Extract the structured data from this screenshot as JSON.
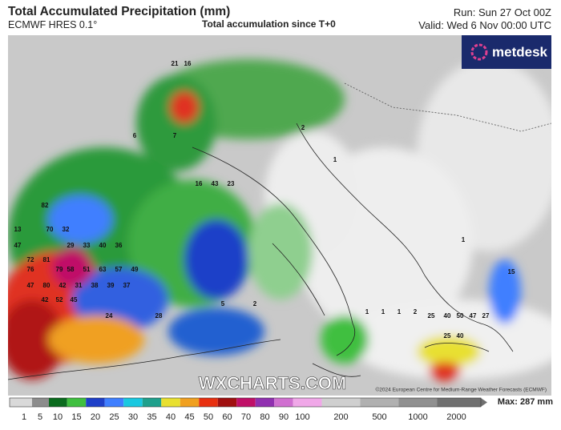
{
  "header": {
    "title": "Total Accumulated Precipitation (mm)",
    "model": "ECMWF HRES 0.1°",
    "subtitle": "Total accumulation since T+0",
    "run": "Run: Sun 27 Oct 00Z",
    "valid": "Valid: Wed 6 Nov 00:00 UTC"
  },
  "logo": "metdesk",
  "watermark": "WXCHARTS.COM",
  "copyright": "©2024 European Centre for Medium-Range Weather Forecasts (ECMWF)",
  "map_labels": [
    "13",
    "70",
    "32",
    "82",
    "47",
    "76",
    "29",
    "33",
    "40",
    "36",
    "72",
    "81",
    "79",
    "58",
    "51",
    "63",
    "57",
    "49",
    "47",
    "80",
    "42",
    "31",
    "38",
    "39",
    "37",
    "42",
    "52",
    "45",
    "24",
    "28",
    "25",
    "40",
    "50",
    "47",
    "27",
    "25",
    "40",
    "15",
    "21",
    "16",
    "5",
    "2",
    "1",
    "1",
    "1",
    "2",
    "6",
    "7",
    "16",
    "43",
    "23",
    "2",
    "1",
    "1"
  ],
  "colorbar": {
    "ticks": [
      1,
      5,
      10,
      15,
      20,
      25,
      30,
      35,
      40,
      45,
      50,
      60,
      70,
      80,
      90,
      100,
      200,
      500,
      1000,
      2000
    ],
    "colors": [
      "#d9d9d9",
      "#8c8c8c",
      "#0b6b1e",
      "#3fbf3f",
      "#1e3fc8",
      "#3f7fff",
      "#19c8e0",
      "#1fa08c",
      "#e8e030",
      "#f0a020",
      "#e83010",
      "#a01010",
      "#c01068",
      "#9030b0",
      "#d070d0",
      "#f0a8e8",
      "#cfcfcf",
      "#b0b0b0",
      "#909090",
      "#707070"
    ],
    "max": "Max: 287 mm"
  }
}
